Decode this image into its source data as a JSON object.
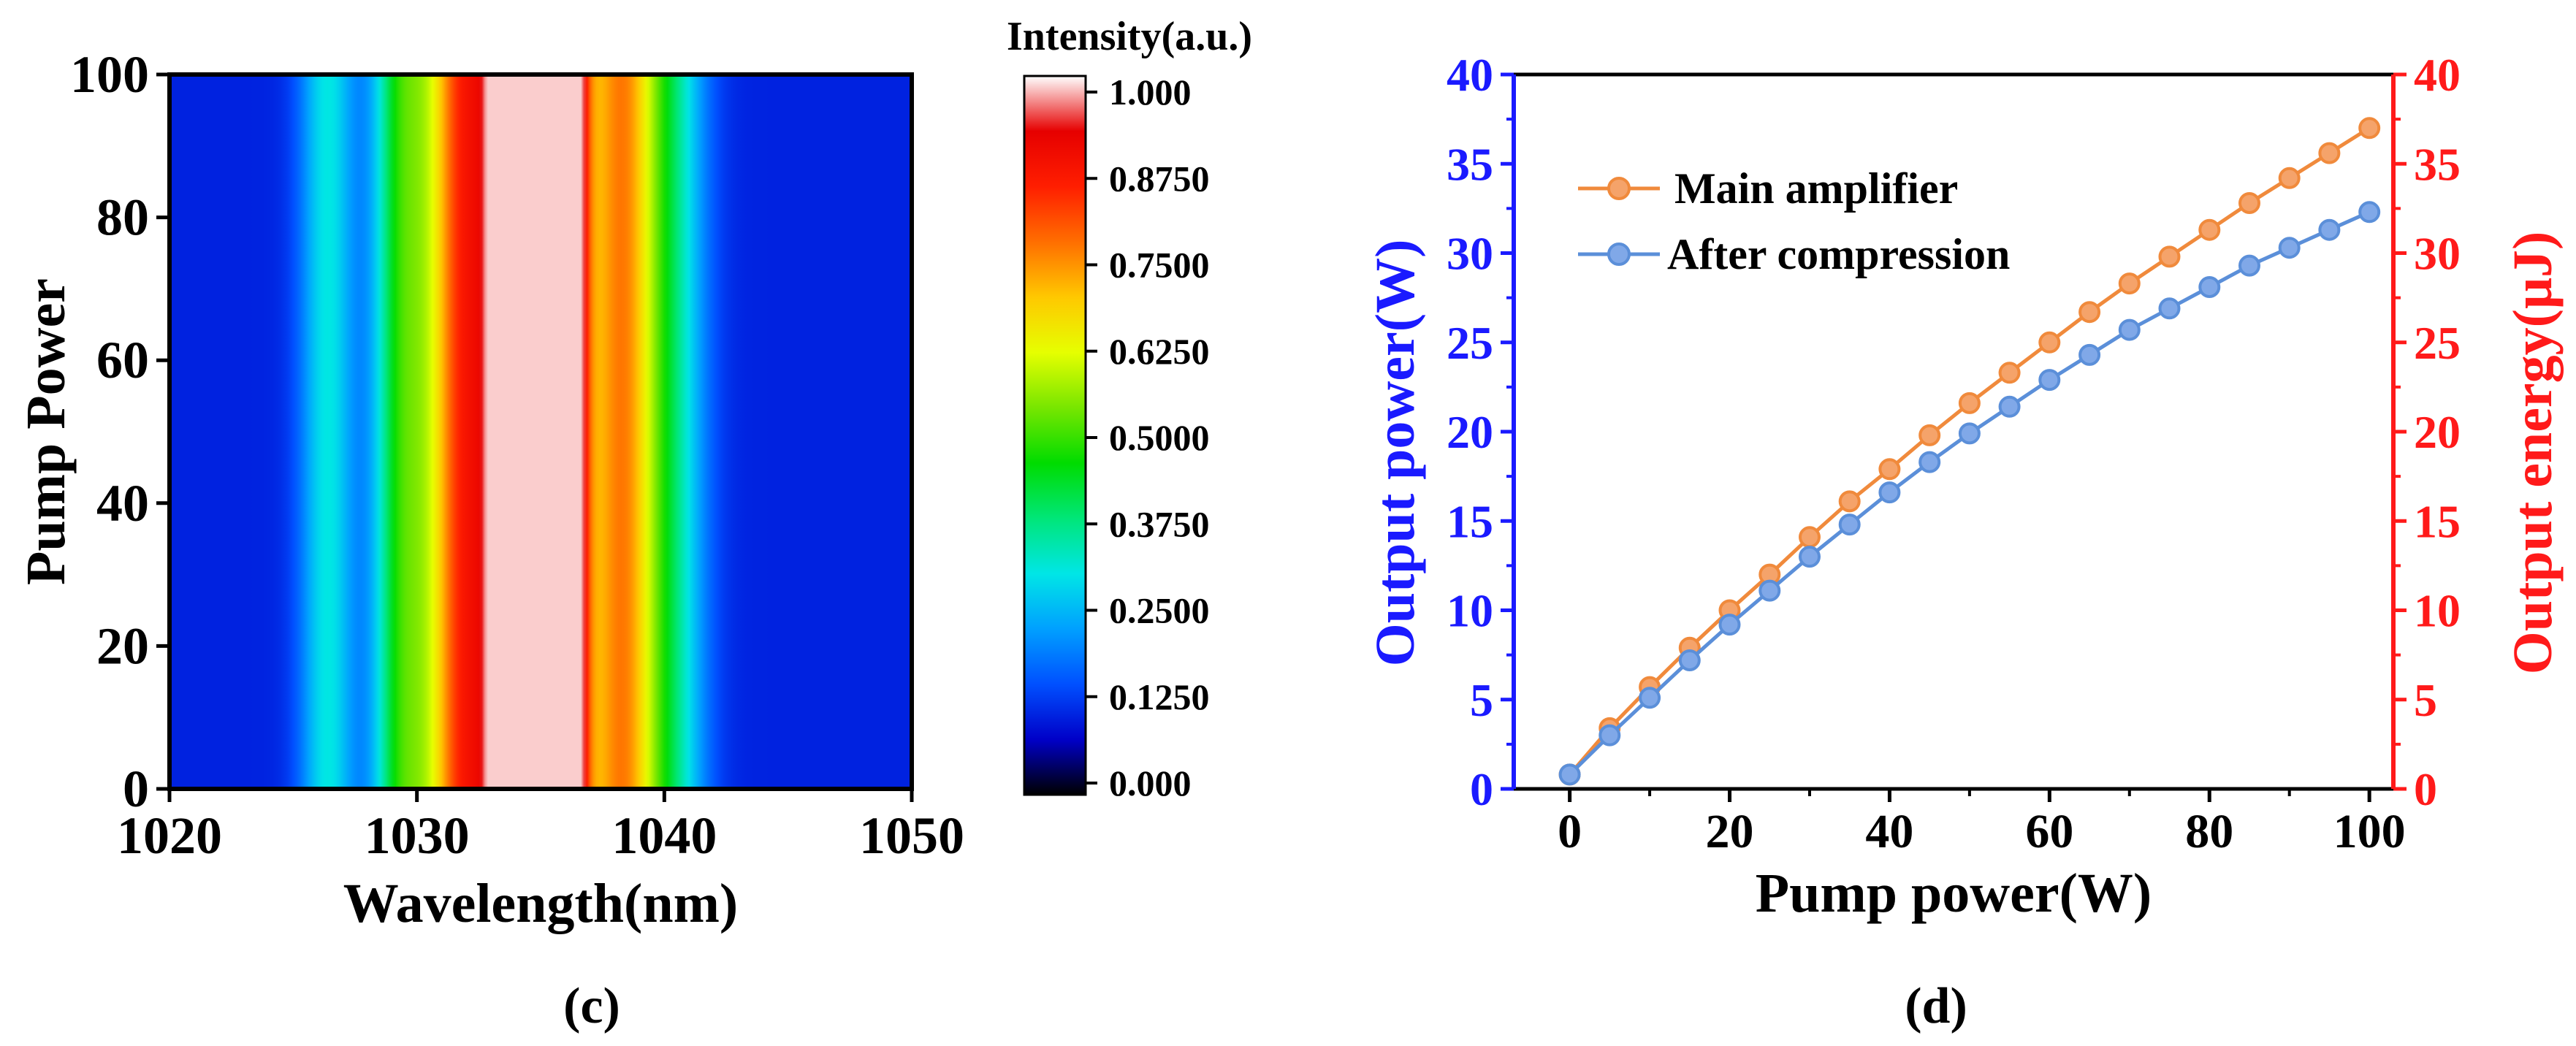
{
  "chart_data": [
    {
      "panel_label": "(c)",
      "type": "heatmap",
      "title": "",
      "xlabel": "Wavelength(nm)",
      "ylabel": "Pump Power",
      "xlim": [
        1020,
        1050
      ],
      "ylim": [
        0,
        100
      ],
      "xticks": [
        "1020",
        "1030",
        "1040",
        "1050"
      ],
      "yticks": [
        "0",
        "20",
        "40",
        "60",
        "80",
        "100"
      ],
      "colorbar": {
        "title": "Intensity(a.u.)",
        "range": [
          0,
          1
        ],
        "ticks": [
          "0.000",
          "0.1250",
          "0.2500",
          "0.3750",
          "0.5000",
          "0.6250",
          "0.7500",
          "0.8750",
          "1.000"
        ],
        "stops": [
          "#000000",
          "#0000c8",
          "#0050ff",
          "#00a0ff",
          "#00e6e6",
          "#00e678",
          "#00dc00",
          "#78e600",
          "#e6ff00",
          "#ffc800",
          "#ff6e00",
          "#ff1e00",
          "#e60000",
          "#ffffff"
        ]
      },
      "spectrum_peaks": [
        {
          "center": 1035.9,
          "width": 0.55,
          "amp": 1.0
        },
        {
          "center": 1033.8,
          "width": 0.5,
          "amp": 0.92
        },
        {
          "center": 1034.8,
          "width": 1.9,
          "amp": 0.68
        },
        {
          "center": 1031.7,
          "width": 1.2,
          "amp": 0.55
        },
        {
          "center": 1038.4,
          "width": 1.0,
          "amp": 0.5
        },
        {
          "center": 1029.3,
          "width": 0.8,
          "amp": 0.3
        },
        {
          "center": 1040.3,
          "width": 1.0,
          "amp": 0.22
        },
        {
          "center": 1026.4,
          "width": 0.8,
          "amp": 0.2
        }
      ]
    },
    {
      "panel_label": "(d)",
      "type": "line",
      "xlabel": "Pump power(W)",
      "ylabel_left": "Output power(W)",
      "ylabel_right": "Output energy(μJ)",
      "xlim": [
        -7,
        103
      ],
      "ylim_left": [
        0,
        40
      ],
      "ylim_right": [
        0,
        40
      ],
      "xticks": [
        "0",
        "20",
        "40",
        "60",
        "80",
        "100"
      ],
      "yticks_left": [
        "0",
        "5",
        "10",
        "15",
        "20",
        "25",
        "30",
        "35",
        "40"
      ],
      "yticks_right": [
        "0",
        "5",
        "10",
        "15",
        "20",
        "25",
        "30",
        "35",
        "40"
      ],
      "colors": {
        "left_axis": "#1a1aff",
        "right_axis": "#ff1a1a",
        "main": "#f08a3c",
        "compressed": "#5b8fd9"
      },
      "x": [
        0,
        5,
        10,
        15,
        20,
        25,
        30,
        35,
        40,
        45,
        50,
        55,
        60,
        65,
        70,
        75,
        80,
        85,
        90,
        95,
        100
      ],
      "series": [
        {
          "name": "Main amplifier",
          "values": [
            0.8,
            3.4,
            5.7,
            7.9,
            10.0,
            12.0,
            14.1,
            16.1,
            17.9,
            19.8,
            21.6,
            23.3,
            25.0,
            26.7,
            28.3,
            29.8,
            31.3,
            32.8,
            34.2,
            35.6,
            37.0
          ]
        },
        {
          "name": "After compression",
          "values": [
            0.8,
            3.0,
            5.1,
            7.2,
            9.2,
            11.1,
            13.0,
            14.8,
            16.6,
            18.3,
            19.9,
            21.4,
            22.9,
            24.3,
            25.7,
            26.9,
            28.1,
            29.3,
            30.3,
            31.3,
            32.3
          ]
        }
      ]
    }
  ]
}
